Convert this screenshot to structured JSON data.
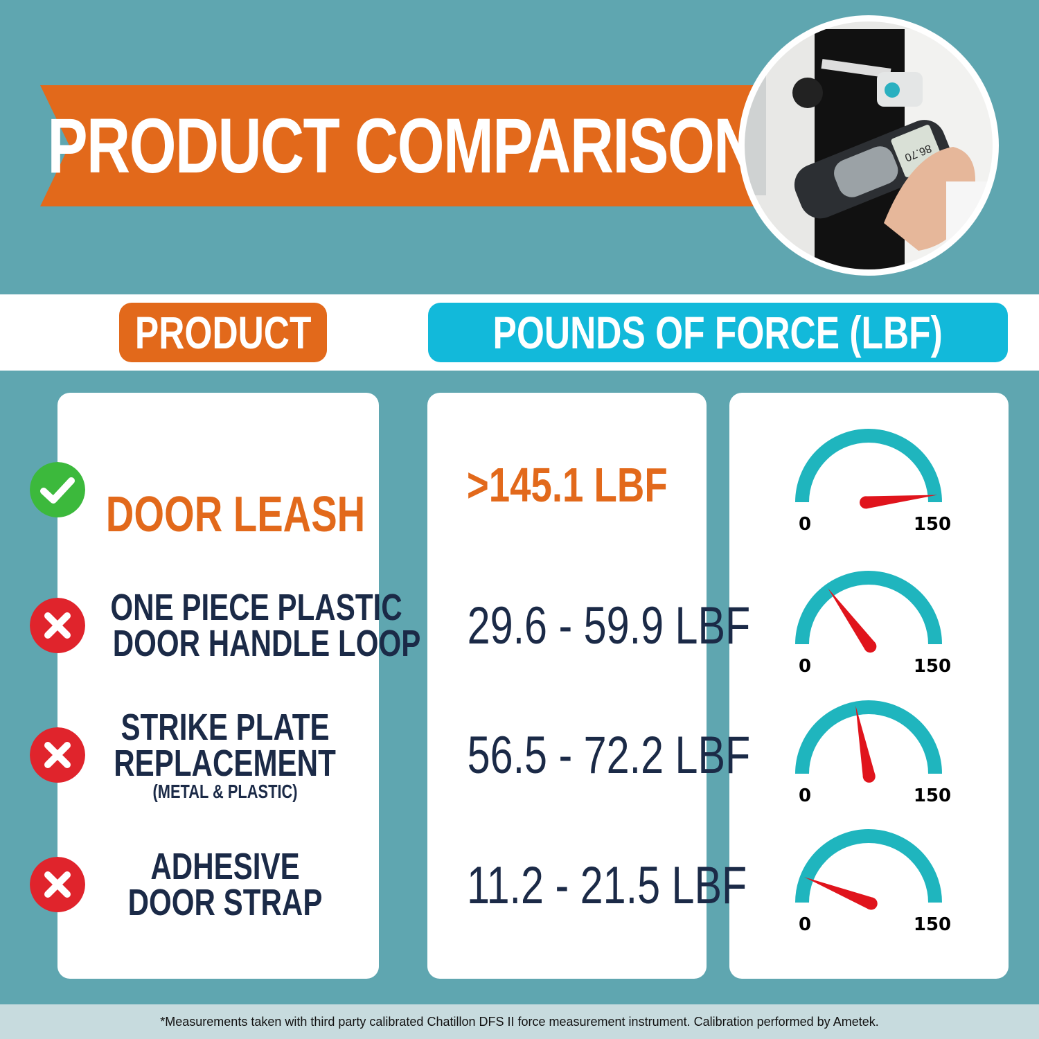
{
  "header": {
    "title": "PRODUCT COMPARISON"
  },
  "photo": {
    "meter_readout": "86.70"
  },
  "columns": {
    "product": "PRODUCT",
    "force": "POUNDS OF FORCE (LBF)"
  },
  "gauge_scale": {
    "min_label": "0",
    "max_label": "150",
    "min": 0,
    "max": 150
  },
  "rows": [
    {
      "status": "check",
      "name_lines": [
        "DOOR LEASH"
      ],
      "note": "",
      "value": ">145.1 LBF",
      "needle": 145
    },
    {
      "status": "cross",
      "name_lines": [
        "ONE PIECE PLASTIC",
        "DOOR HANDLE LOOP"
      ],
      "note": "",
      "value": "29.6 - 59.9 LBF",
      "needle": 45
    },
    {
      "status": "cross",
      "name_lines": [
        "STRIKE PLATE",
        "REPLACEMENT"
      ],
      "note": "(METAL & PLASTIC)",
      "value": "56.5 - 72.2 LBF",
      "needle": 66
    },
    {
      "status": "cross",
      "name_lines": [
        "ADHESIVE",
        "DOOR STRAP"
      ],
      "note": "",
      "value": "11.2 - 21.5 LBF",
      "needle": 18
    }
  ],
  "footer": {
    "note": "*Measurements taken with third party calibrated Chatillon DFS II force measurement instrument. Calibration performed by Ametek."
  },
  "colors": {
    "background": "#5fa6b0",
    "orange": "#e2691b",
    "cyan": "#12b9da",
    "navy": "#1b2a47",
    "gauge": "#1fb5be",
    "needle": "#e0141c",
    "check": "#3cb93c",
    "cross": "#e0242c"
  }
}
